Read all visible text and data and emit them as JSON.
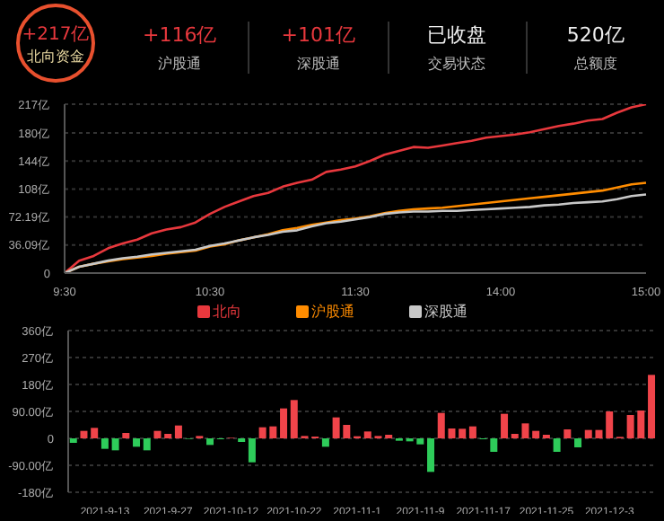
{
  "chart_data": [
    {
      "type": "other",
      "annotations": [
        "+217亿",
        "北向资金",
        "+116亿",
        "沪股通",
        "+101亿",
        "深股通",
        "已收盘",
        "交易状态",
        "520亿",
        "总额度"
      ]
    },
    {
      "type": "line",
      "categories": [
        "9:30",
        null,
        null,
        null,
        null,
        null,
        null,
        null,
        null,
        null,
        "10:30",
        null,
        null,
        null,
        null,
        null,
        null,
        null,
        null,
        null,
        "11:30",
        null,
        null,
        null,
        null,
        null,
        null,
        null,
        null,
        null,
        "14:00",
        null,
        null,
        null,
        null,
        null,
        null,
        null,
        null,
        null,
        "15:00"
      ],
      "series": [
        {
          "name": "北向",
          "color": "#e8383d",
          "values": [
            0,
            16,
            22,
            32,
            38,
            43,
            51,
            56,
            59,
            65,
            76,
            85,
            92,
            99,
            103,
            111,
            116,
            120,
            130,
            133,
            137,
            144,
            152,
            157,
            162,
            161,
            164,
            167,
            170,
            174,
            176,
            178,
            181,
            185,
            189,
            192,
            196,
            198,
            206,
            213,
            217
          ]
        },
        {
          "name": "沪股通",
          "color": "#ff8c00",
          "values": [
            0,
            8,
            12,
            15,
            18,
            20,
            22,
            25,
            27,
            29,
            34,
            37,
            42,
            46,
            50,
            55,
            58,
            62,
            65,
            68,
            70,
            73,
            77,
            80,
            82,
            83,
            84,
            86,
            88,
            90,
            92,
            94,
            96,
            98,
            100,
            102,
            104,
            106,
            110,
            114,
            116
          ]
        },
        {
          "name": "深股通",
          "color": "#c8c8c8",
          "values": [
            0,
            8,
            12,
            16,
            19,
            21,
            24,
            26,
            28,
            30,
            35,
            38,
            42,
            46,
            49,
            53,
            55,
            60,
            64,
            66,
            69,
            72,
            76,
            78,
            79,
            79,
            80,
            80,
            81,
            82,
            83,
            84,
            85,
            87,
            88,
            90,
            91,
            92,
            95,
            99,
            101
          ]
        }
      ],
      "ylim": [
        0,
        217
      ],
      "yticks": [
        0,
        {
          "value": 36.09,
          "label": "36.09亿"
        },
        {
          "value": 72.19,
          "label": "72.19亿"
        },
        {
          "value": 108,
          "label": "108亿"
        },
        {
          "value": 144,
          "label": "144亿"
        },
        {
          "value": 180,
          "label": "180亿"
        },
        {
          "value": 217,
          "label": "217亿"
        }
      ],
      "grid": "y",
      "legend": "bottom"
    },
    {
      "type": "bar",
      "categories": [
        null,
        null,
        null,
        "2021-9-13",
        null,
        null,
        null,
        null,
        null,
        "2021-9-27",
        null,
        null,
        null,
        null,
        null,
        "2021-10-12",
        null,
        null,
        null,
        null,
        null,
        "2021-10-22",
        null,
        null,
        null,
        null,
        null,
        "2021-11-1",
        null,
        null,
        null,
        null,
        null,
        "2021-11-9",
        null,
        null,
        null,
        null,
        null,
        "2021-11-17",
        null,
        null,
        null,
        null,
        null,
        "2021-11-25",
        null,
        null,
        null,
        null,
        null,
        "2021-12-3",
        null,
        null,
        null,
        null
      ],
      "values": [
        -15,
        25,
        35,
        -35,
        -40,
        18,
        -28,
        -40,
        25,
        15,
        43,
        -2,
        8,
        -22,
        -3,
        2,
        -12,
        -80,
        37,
        40,
        100,
        128,
        8,
        6,
        -28,
        70,
        45,
        7,
        23,
        8,
        12,
        -8,
        -10,
        -20,
        -112,
        85,
        33,
        32,
        40,
        -3,
        -45,
        82,
        15,
        50,
        25,
        12,
        -45,
        30,
        -30,
        28,
        28,
        90,
        5,
        78,
        93,
        212
      ],
      "colors": [
        "#2ecc5a",
        "#f0444a",
        "#f0444a",
        "#2ecc5a",
        "#2ecc5a",
        "#f0444a",
        "#2ecc5a",
        "#2ecc5a",
        "#f0444a",
        "#f0444a",
        "#f0444a",
        "#2ecc5a",
        "#f0444a",
        "#2ecc5a",
        "#2ecc5a",
        "#f0444a",
        "#2ecc5a",
        "#2ecc5a",
        "#f0444a",
        "#f0444a",
        "#f0444a",
        "#f0444a",
        "#f0444a",
        "#f0444a",
        "#2ecc5a",
        "#f0444a",
        "#f0444a",
        "#f0444a",
        "#f0444a",
        "#f0444a",
        "#f0444a",
        "#2ecc5a",
        "#2ecc5a",
        "#2ecc5a",
        "#2ecc5a",
        "#f0444a",
        "#f0444a",
        "#f0444a",
        "#f0444a",
        "#2ecc5a",
        "#2ecc5a",
        "#f0444a",
        "#f0444a",
        "#f0444a",
        "#f0444a",
        "#f0444a",
        "#2ecc5a",
        "#f0444a",
        "#2ecc5a",
        "#f0444a",
        "#f0444a",
        "#f0444a",
        "#f0444a",
        "#f0444a",
        "#f0444a",
        "#f0444a"
      ],
      "ylim": [
        -180,
        360
      ],
      "yticks": [
        {
          "value": -180,
          "label": "-180亿"
        },
        {
          "value": -90,
          "label": "-90.00亿"
        },
        0,
        {
          "value": 90,
          "label": "90.00亿"
        },
        {
          "value": 180,
          "label": "180亿"
        },
        {
          "value": 270,
          "label": "270亿"
        },
        {
          "value": 360,
          "label": "360亿"
        }
      ],
      "grid": "y"
    }
  ]
}
